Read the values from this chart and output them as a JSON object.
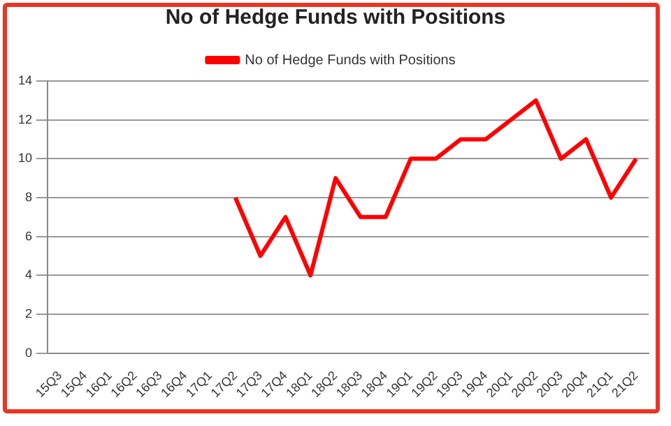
{
  "chart_data": {
    "type": "line",
    "title": "No of Hedge Funds with Positions",
    "categories": [
      "15Q3",
      "15Q4",
      "16Q1",
      "16Q2",
      "16Q3",
      "16Q4",
      "17Q1",
      "17Q2",
      "17Q3",
      "17Q4",
      "18Q1",
      "18Q2",
      "18Q3",
      "18Q4",
      "19Q1",
      "19Q2",
      "19Q3",
      "19Q4",
      "20Q1",
      "20Q2",
      "20Q3",
      "20Q4",
      "21Q1",
      "21Q2"
    ],
    "series": [
      {
        "name": "No of Hedge Funds with Positions",
        "color": "#ff0000",
        "values": [
          null,
          null,
          null,
          null,
          null,
          null,
          null,
          8,
          5,
          7,
          4,
          9,
          7,
          7,
          10,
          10,
          11,
          11,
          12,
          13,
          10,
          11,
          8,
          10
        ]
      }
    ],
    "ylim": [
      0,
      14
    ],
    "yticks": [
      0,
      2,
      4,
      6,
      8,
      10,
      12,
      14
    ],
    "grid": "y",
    "legend": "top",
    "marker": "none"
  }
}
